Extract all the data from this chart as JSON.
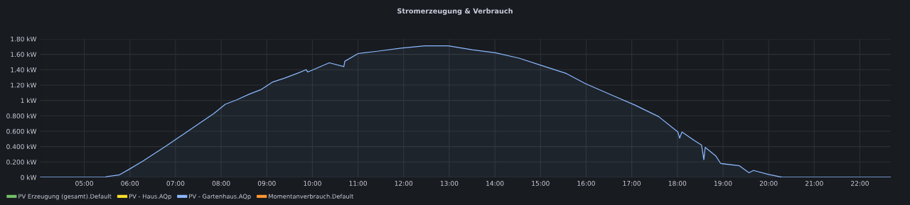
{
  "chart_data": {
    "type": "area",
    "title": "Stromerzeugung & Verbrauch",
    "xlim": [
      4.03,
      22.68
    ],
    "ylim": [
      0,
      1.8
    ],
    "xticks": [
      {
        "value": 5,
        "label": "05:00"
      },
      {
        "value": 6,
        "label": "06:00"
      },
      {
        "value": 7,
        "label": "07:00"
      },
      {
        "value": 8,
        "label": "08:00"
      },
      {
        "value": 9,
        "label": "09:00"
      },
      {
        "value": 10,
        "label": "10:00"
      },
      {
        "value": 11,
        "label": "11:00"
      },
      {
        "value": 12,
        "label": "12:00"
      },
      {
        "value": 13,
        "label": "13:00"
      },
      {
        "value": 14,
        "label": "14:00"
      },
      {
        "value": 15,
        "label": "15:00"
      },
      {
        "value": 16,
        "label": "16:00"
      },
      {
        "value": 17,
        "label": "17:00"
      },
      {
        "value": 18,
        "label": "18:00"
      },
      {
        "value": 19,
        "label": "19:00"
      },
      {
        "value": 20,
        "label": "20:00"
      },
      {
        "value": 21,
        "label": "21:00"
      },
      {
        "value": 22,
        "label": "22:00"
      }
    ],
    "yticks": [
      {
        "value": 0,
        "label": "0 kW"
      },
      {
        "value": 0.2,
        "label": "0.200 kW"
      },
      {
        "value": 0.4,
        "label": "0.400 kW"
      },
      {
        "value": 0.6,
        "label": "0.600 kW"
      },
      {
        "value": 0.8,
        "label": "0.800 kW"
      },
      {
        "value": 1,
        "label": "1 kW"
      },
      {
        "value": 1.2,
        "label": "1.20 kW"
      },
      {
        "value": 1.4,
        "label": "1.40 kW"
      },
      {
        "value": 1.6,
        "label": "1.60 kW"
      },
      {
        "value": 1.8,
        "label": "1.80 kW"
      }
    ],
    "grid": true,
    "legend": "bottom left",
    "series": [
      {
        "name": "PV Erzeugung (gesamt).Default",
        "color": "#73bf69"
      },
      {
        "name": "PV - Haus.AQp",
        "color": "#fade2a"
      },
      {
        "name": "PV - Gartenhaus.AQp",
        "color": "#8ab8ff",
        "x": [
          4.03,
          5.45,
          5.5,
          5.76,
          5.97,
          6.28,
          6.8,
          7.32,
          7.84,
          8.09,
          8.35,
          8.61,
          8.87,
          9.13,
          9.39,
          9.7,
          9.86,
          9.9,
          10.37,
          10.69,
          10.71,
          11.0,
          11.42,
          11.94,
          12.46,
          12.98,
          13.5,
          14.01,
          14.53,
          15.05,
          15.57,
          15.98,
          16.56,
          17.07,
          17.59,
          18.01,
          18.05,
          18.1,
          18.37,
          18.53,
          18.58,
          18.61,
          18.84,
          18.95,
          19.36,
          19.57,
          19.67,
          19.98,
          20.3,
          22.68
        ],
        "values": [
          0,
          0,
          0.01,
          0.03,
          0.1,
          0.21,
          0.41,
          0.62,
          0.83,
          0.95,
          1.01,
          1.08,
          1.14,
          1.24,
          1.29,
          1.36,
          1.4,
          1.37,
          1.49,
          1.44,
          1.51,
          1.61,
          1.64,
          1.68,
          1.71,
          1.71,
          1.66,
          1.62,
          1.55,
          1.45,
          1.35,
          1.22,
          1.07,
          0.94,
          0.79,
          0.59,
          0.51,
          0.59,
          0.48,
          0.42,
          0.23,
          0.39,
          0.28,
          0.18,
          0.15,
          0.06,
          0.09,
          0.04,
          0,
          0
        ]
      },
      {
        "name": "Momentanverbrauch.Default",
        "color": "#ff9830"
      }
    ]
  }
}
